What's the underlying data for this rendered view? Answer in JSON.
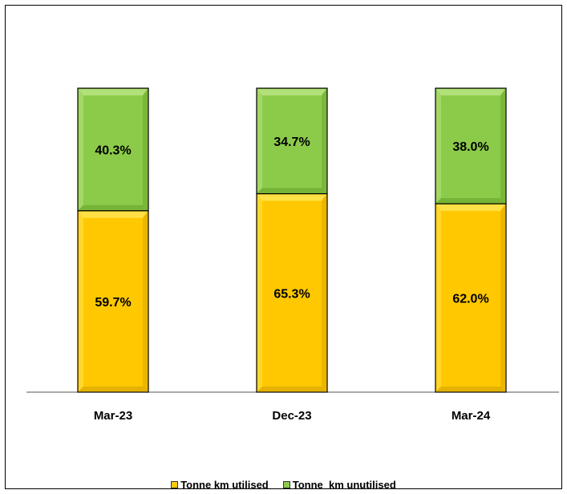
{
  "chart_data": {
    "type": "bar",
    "stacked": true,
    "categories": [
      "Mar-23",
      "Dec-23",
      "Mar-24"
    ],
    "series": [
      {
        "name": "Tonne km utilised",
        "values": [
          59.7,
          65.3,
          62.0
        ],
        "labels": [
          "59.7%",
          "65.3%",
          "62.0%"
        ],
        "color": "#FFC800"
      },
      {
        "name": "Tonne  km unutilised",
        "values": [
          40.3,
          34.7,
          38.0
        ],
        "labels": [
          "40.3%",
          "34.7%",
          "38.0%"
        ],
        "color": "#8CCB4A"
      }
    ],
    "ylim": [
      0,
      100
    ],
    "grid": false,
    "legend": "bottom"
  }
}
